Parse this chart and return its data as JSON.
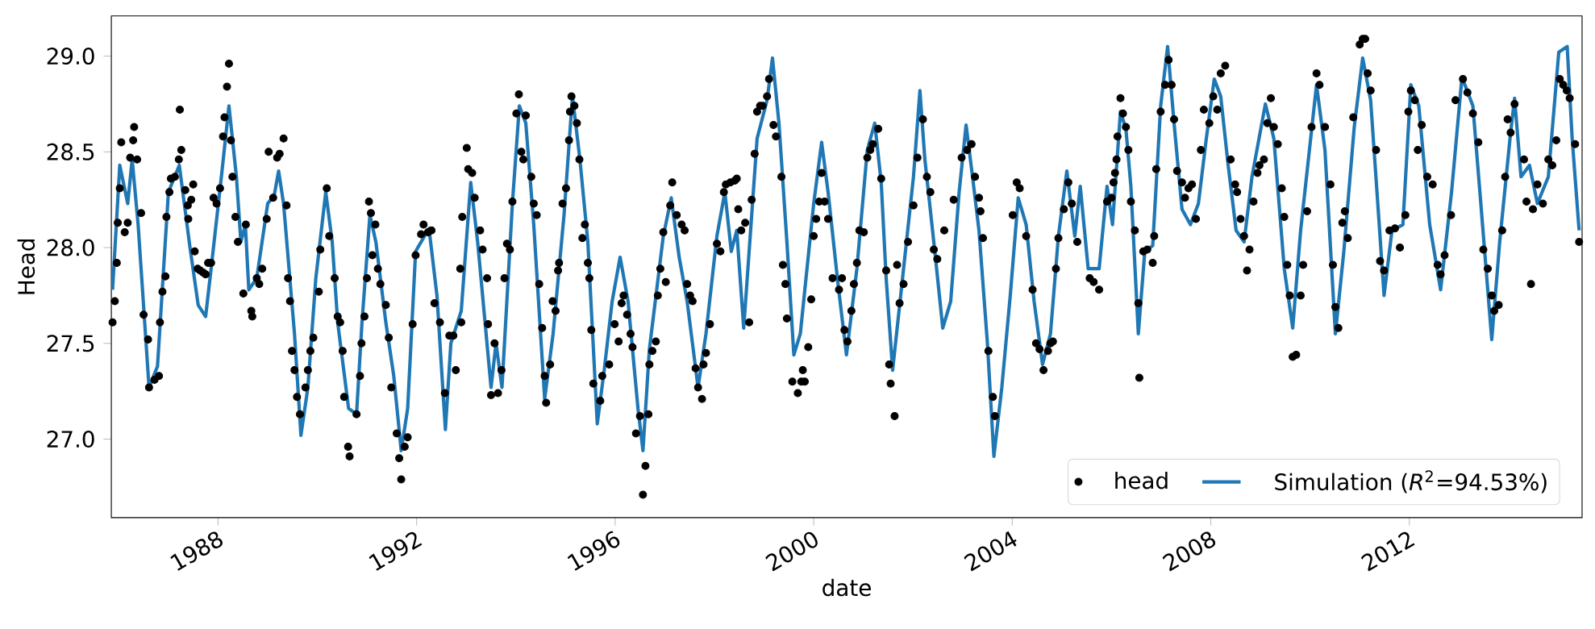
{
  "chart_data": {
    "type": "scatter",
    "xlabel": "date",
    "ylabel": "Head",
    "xlim": [
      1985.85,
      2015.48
    ],
    "ylim": [
      26.59,
      29.21
    ],
    "xticks": [
      1988,
      1992,
      1996,
      2000,
      2004,
      2008,
      2012
    ],
    "yticks": [
      {
        "value": 27,
        "label": "27.0"
      },
      {
        "value": 27.5,
        "label": "27.5"
      },
      {
        "value": 28,
        "label": "28.0"
      },
      {
        "value": 28.5,
        "label": "28.5"
      },
      {
        "value": 29,
        "label": "29.0"
      }
    ],
    "legend": "bottom right",
    "series": [
      {
        "name": "head",
        "marker": "circle",
        "color": "#000000",
        "x": [
          1985.875,
          1985.92,
          1985.96,
          1985.98,
          1986.02,
          1986.05,
          1986.12,
          1986.18,
          1986.23,
          1986.29,
          1986.31,
          1986.37,
          1986.45,
          1986.5,
          1986.59,
          1986.61,
          1986.72,
          1986.81,
          1986.83,
          1986.88,
          1986.94,
          1986.96,
          1987.02,
          1987.05,
          1987.13,
          1987.21,
          1987.23,
          1987.26,
          1987.34,
          1987.39,
          1987.4,
          1987.46,
          1987.5,
          1987.53,
          1987.59,
          1987.64,
          1987.7,
          1987.75,
          1987.8,
          1987.86,
          1987.91,
          1987.97,
          1988.04,
          1988.1,
          1988.13,
          1988.18,
          1988.22,
          1988.26,
          1988.29,
          1988.35,
          1988.4,
          1988.51,
          1988.56,
          1988.67,
          1988.69,
          1988.78,
          1988.83,
          1988.89,
          1988.98,
          1989.02,
          1989.11,
          1989.19,
          1989.24,
          1989.32,
          1989.38,
          1989.41,
          1989.45,
          1989.49,
          1989.54,
          1989.59,
          1989.65,
          1989.76,
          1989.81,
          1989.86,
          1989.92,
          1990.03,
          1990.06,
          1990.19,
          1990.24,
          1990.35,
          1990.41,
          1990.46,
          1990.51,
          1990.54,
          1990.62,
          1990.65,
          1990.79,
          1990.86,
          1990.89,
          1990.95,
          1991.0,
          1991.04,
          1991.08,
          1991.11,
          1991.17,
          1991.22,
          1991.27,
          1991.38,
          1991.44,
          1991.49,
          1991.6,
          1991.65,
          1991.69,
          1991.76,
          1991.82,
          1991.92,
          1991.98,
          1992.09,
          1992.14,
          1992.23,
          1992.3,
          1992.36,
          1992.47,
          1992.57,
          1992.66,
          1992.74,
          1992.79,
          1992.88,
          1992.9,
          1992.92,
          1993.01,
          1993.04,
          1993.12,
          1993.17,
          1993.28,
          1993.33,
          1993.42,
          1993.44,
          1993.5,
          1993.57,
          1993.64,
          1993.71,
          1993.77,
          1993.82,
          1993.88,
          1993.93,
          1994.01,
          1994.06,
          1994.11,
          1994.15,
          1994.2,
          1994.31,
          1994.36,
          1994.42,
          1994.47,
          1994.53,
          1994.58,
          1994.61,
          1994.69,
          1994.74,
          1994.8,
          1994.85,
          1994.87,
          1994.94,
          1995.01,
          1995.07,
          1995.09,
          1995.12,
          1995.18,
          1995.23,
          1995.28,
          1995.34,
          1995.39,
          1995.45,
          1995.48,
          1995.52,
          1995.56,
          1995.7,
          1995.74,
          1995.88,
          1995.99,
          1996.07,
          1996.13,
          1996.17,
          1996.24,
          1996.31,
          1996.35,
          1996.42,
          1996.5,
          1996.56,
          1996.61,
          1996.67,
          1996.69,
          1996.75,
          1996.82,
          1996.86,
          1996.91,
          1996.97,
          1997.02,
          1997.11,
          1997.15,
          1997.24,
          1997.34,
          1997.4,
          1997.45,
          1997.51,
          1997.56,
          1997.62,
          1997.67,
          1997.75,
          1997.78,
          1997.83,
          1997.91,
          1998.05,
          1998.12,
          1998.19,
          1998.23,
          1998.32,
          1998.41,
          1998.45,
          1998.48,
          1998.54,
          1998.62,
          1998.7,
          1998.75,
          1998.81,
          1998.86,
          1998.92,
          1998.97,
          1999.06,
          1999.1,
          1999.19,
          1999.24,
          1999.35,
          1999.38,
          1999.43,
          1999.46,
          1999.57,
          1999.68,
          1999.75,
          1999.78,
          1999.82,
          1999.89,
          1999.95,
          2000.0,
          2000.05,
          2000.11,
          2000.16,
          2000.22,
          2000.29,
          2000.38,
          2000.51,
          2000.57,
          2000.62,
          2000.68,
          2000.76,
          2000.81,
          2000.87,
          2000.92,
          2001.01,
          2001.08,
          2001.14,
          2001.19,
          2001.3,
          2001.36,
          2001.46,
          2001.52,
          2001.55,
          2001.63,
          2001.68,
          2001.73,
          2001.81,
          2001.9,
          2002.01,
          2002.09,
          2002.2,
          2002.28,
          2002.35,
          2002.42,
          2002.49,
          2002.63,
          2002.82,
          2002.98,
          2003.09,
          2003.18,
          2003.25,
          2003.33,
          2003.36,
          2003.41,
          2003.52,
          2003.61,
          2003.65,
          2004.01,
          2004.09,
          2004.15,
          2004.28,
          2004.41,
          2004.48,
          2004.55,
          2004.63,
          2004.72,
          2004.77,
          2004.82,
          2004.88,
          2004.93,
          2005.04,
          2005.13,
          2005.2,
          2005.31,
          2005.56,
          2005.64,
          2005.75,
          2005.91,
          2006.0,
          2006.04,
          2006.07,
          2006.1,
          2006.12,
          2006.18,
          2006.23,
          2006.29,
          2006.34,
          2006.39,
          2006.47,
          2006.54,
          2006.56,
          2006.64,
          2006.72,
          2006.83,
          2006.86,
          2006.9,
          2006.99,
          2007.08,
          2007.15,
          2007.21,
          2007.26,
          2007.32,
          2007.42,
          2007.48,
          2007.55,
          2007.62,
          2007.7,
          2007.8,
          2007.86,
          2007.97,
          2008.05,
          2008.13,
          2008.2,
          2008.29,
          2008.4,
          2008.49,
          2008.53,
          2008.6,
          2008.67,
          2008.73,
          2008.78,
          2008.86,
          2008.94,
          2008.98,
          2009.07,
          2009.14,
          2009.21,
          2009.27,
          2009.35,
          2009.43,
          2009.48,
          2009.54,
          2009.59,
          2009.65,
          2009.72,
          2009.81,
          2009.86,
          2009.94,
          2010.03,
          2010.13,
          2010.19,
          2010.3,
          2010.41,
          2010.46,
          2010.51,
          2010.57,
          2010.65,
          2010.7,
          2010.76,
          2010.87,
          2011.0,
          2011.06,
          2011.11,
          2011.16,
          2011.22,
          2011.33,
          2011.41,
          2011.49,
          2011.6,
          2011.71,
          2011.81,
          2011.92,
          2011.98,
          2012.03,
          2012.11,
          2012.17,
          2012.25,
          2012.36,
          2012.47,
          2012.57,
          2012.63,
          2012.71,
          2012.84,
          2012.93,
          2013.08,
          2013.17,
          2013.28,
          2013.39,
          2013.49,
          2013.58,
          2013.66,
          2013.71,
          2013.8,
          2013.87,
          2013.93,
          2013.98,
          2014.04,
          2014.12,
          2014.31,
          2014.36,
          2014.45,
          2014.49,
          2014.58,
          2014.69,
          2014.8,
          2014.88,
          2014.96,
          2015.03,
          2015.1,
          2015.17,
          2015.23,
          2015.34,
          2015.42
        ],
        "values": [
          27.61,
          27.72,
          27.92,
          28.13,
          28.31,
          28.55,
          28.08,
          28.13,
          28.47,
          28.56,
          28.63,
          28.46,
          28.18,
          27.65,
          27.52,
          27.27,
          27.31,
          27.33,
          27.61,
          27.77,
          27.85,
          28.16,
          28.29,
          28.36,
          28.37,
          28.46,
          28.72,
          28.51,
          28.3,
          28.22,
          28.15,
          28.25,
          28.33,
          27.98,
          27.89,
          27.88,
          27.87,
          27.86,
          27.92,
          27.92,
          28.26,
          28.23,
          28.31,
          28.58,
          28.68,
          28.84,
          28.96,
          28.56,
          28.37,
          28.16,
          28.03,
          27.76,
          28.12,
          27.67,
          27.64,
          27.84,
          27.81,
          27.89,
          28.15,
          28.5,
          28.26,
          28.47,
          28.49,
          28.57,
          28.22,
          27.84,
          27.72,
          27.46,
          27.36,
          27.22,
          27.13,
          27.27,
          27.36,
          27.46,
          27.53,
          27.77,
          27.99,
          28.31,
          28.06,
          27.84,
          27.64,
          27.61,
          27.46,
          27.22,
          26.96,
          26.91,
          27.13,
          27.33,
          27.5,
          27.64,
          27.84,
          28.24,
          28.18,
          27.96,
          28.12,
          27.89,
          27.81,
          27.7,
          27.53,
          27.27,
          27.03,
          26.9,
          26.79,
          26.96,
          27.01,
          27.6,
          27.96,
          28.07,
          28.12,
          28.08,
          28.09,
          27.71,
          27.61,
          27.24,
          27.54,
          27.54,
          27.36,
          27.89,
          27.61,
          28.16,
          28.52,
          28.41,
          28.39,
          28.26,
          28.09,
          27.99,
          27.84,
          27.6,
          27.23,
          27.5,
          27.24,
          27.36,
          27.84,
          28.02,
          27.99,
          28.24,
          28.7,
          28.8,
          28.5,
          28.46,
          28.69,
          28.37,
          28.23,
          28.17,
          27.81,
          27.58,
          27.33,
          27.19,
          27.39,
          27.72,
          27.67,
          27.88,
          27.92,
          28.23,
          28.31,
          28.56,
          28.71,
          28.79,
          28.74,
          28.65,
          28.46,
          28.05,
          28.12,
          27.92,
          27.84,
          27.57,
          27.29,
          27.2,
          27.33,
          27.39,
          27.6,
          27.51,
          27.71,
          27.75,
          27.65,
          27.55,
          27.48,
          27.03,
          27.12,
          26.71,
          26.86,
          27.13,
          27.39,
          27.46,
          27.51,
          27.75,
          27.89,
          28.08,
          27.82,
          28.22,
          28.34,
          28.17,
          28.12,
          28.09,
          27.81,
          27.75,
          27.72,
          27.37,
          27.27,
          27.21,
          27.39,
          27.45,
          27.6,
          28.02,
          27.98,
          28.29,
          28.33,
          28.34,
          28.35,
          28.36,
          28.2,
          28.09,
          28.13,
          27.61,
          28.25,
          28.49,
          28.71,
          28.74,
          28.74,
          28.79,
          28.88,
          28.64,
          28.58,
          28.37,
          27.91,
          27.81,
          27.63,
          27.3,
          27.24,
          27.3,
          27.36,
          27.3,
          27.48,
          27.73,
          28.06,
          28.15,
          28.24,
          28.39,
          28.24,
          28.15,
          27.84,
          27.78,
          27.84,
          27.57,
          27.51,
          27.67,
          27.81,
          27.92,
          28.09,
          28.08,
          28.47,
          28.51,
          28.54,
          28.62,
          28.36,
          27.88,
          27.39,
          27.29,
          27.12,
          27.91,
          27.71,
          27.81,
          28.03,
          28.22,
          28.47,
          28.67,
          28.37,
          28.29,
          27.99,
          27.94,
          28.09,
          28.25,
          28.47,
          28.51,
          28.54,
          28.37,
          28.26,
          28.19,
          28.05,
          27.46,
          27.22,
          27.12,
          28.17,
          28.34,
          28.31,
          28.06,
          27.78,
          27.5,
          27.47,
          27.36,
          27.46,
          27.5,
          27.51,
          27.89,
          28.05,
          28.2,
          28.34,
          28.23,
          28.03,
          27.84,
          27.82,
          27.78,
          28.24,
          28.26,
          28.34,
          28.39,
          28.46,
          28.58,
          28.78,
          28.7,
          28.63,
          28.51,
          28.24,
          28.09,
          27.71,
          27.32,
          27.98,
          27.99,
          27.92,
          28.06,
          28.41,
          28.71,
          28.85,
          28.98,
          28.85,
          28.67,
          28.4,
          28.34,
          28.26,
          28.31,
          28.33,
          28.15,
          28.51,
          28.72,
          28.65,
          28.79,
          28.72,
          28.91,
          28.95,
          28.46,
          28.33,
          28.29,
          28.15,
          28.06,
          27.88,
          27.99,
          28.24,
          28.39,
          28.43,
          28.46,
          28.65,
          28.78,
          28.63,
          28.54,
          28.31,
          28.16,
          27.91,
          27.75,
          27.43,
          27.44,
          27.75,
          27.91,
          28.19,
          28.63,
          28.91,
          28.85,
          28.63,
          28.33,
          27.91,
          27.69,
          27.58,
          28.13,
          28.19,
          28.05,
          28.68,
          29.06,
          29.09,
          29.09,
          28.91,
          28.82,
          28.51,
          27.93,
          27.88,
          28.09,
          28.1,
          28.0,
          28.17,
          28.71,
          28.82,
          28.77,
          28.51,
          28.64,
          28.37,
          28.33,
          27.91,
          27.86,
          27.96,
          28.17,
          28.77,
          28.88,
          28.81,
          28.7,
          28.55,
          27.99,
          27.89,
          27.75,
          27.67,
          27.7,
          28.09,
          28.37,
          28.67,
          28.6,
          28.75,
          28.46,
          28.24,
          27.81,
          28.2,
          28.33,
          28.23,
          28.46,
          28.43,
          28.56,
          28.88,
          28.85,
          28.82,
          28.78,
          28.54,
          28.03
        ]
      },
      {
        "name": "Simulation (*R*$^{2}$=94.53%)",
        "type": "line",
        "marker": "none",
        "line_style": "solid",
        "color": "#1f77b4",
        "x": [
          1985.875,
          1986.02,
          1986.18,
          1986.27,
          1986.39,
          1986.61,
          1986.78,
          1987.0,
          1987.22,
          1987.43,
          1987.6,
          1987.75,
          1987.86,
          1988.08,
          1988.22,
          1988.37,
          1988.46,
          1988.55,
          1988.62,
          1988.78,
          1989.0,
          1989.13,
          1989.22,
          1989.32,
          1989.54,
          1989.67,
          1989.81,
          1989.97,
          1990.17,
          1990.3,
          1990.41,
          1990.63,
          1990.79,
          1990.9,
          1991.06,
          1991.18,
          1991.38,
          1991.54,
          1991.69,
          1991.82,
          1991.98,
          1992.25,
          1992.41,
          1992.58,
          1992.69,
          1992.9,
          1993.09,
          1993.23,
          1993.5,
          1993.6,
          1993.72,
          1993.93,
          1994.07,
          1994.2,
          1994.36,
          1994.58,
          1994.75,
          1994.97,
          1995.14,
          1995.29,
          1995.45,
          1995.64,
          1995.78,
          1995.94,
          1996.1,
          1996.26,
          1996.46,
          1996.56,
          1996.69,
          1996.97,
          1997.13,
          1997.29,
          1997.45,
          1997.67,
          1997.83,
          1998.05,
          1998.21,
          1998.34,
          1998.45,
          1998.59,
          1998.86,
          1999.06,
          1999.17,
          1999.3,
          1999.46,
          1999.6,
          1999.73,
          2000.0,
          2000.16,
          2000.29,
          2000.49,
          2000.66,
          2000.87,
          2001.08,
          2001.23,
          2001.36,
          2001.46,
          2001.59,
          2001.79,
          2002.01,
          2002.14,
          2002.24,
          2002.44,
          2002.6,
          2002.76,
          2002.93,
          2003.07,
          2003.2,
          2003.33,
          2003.5,
          2003.63,
          2003.79,
          2003.96,
          2004.12,
          2004.28,
          2004.44,
          2004.61,
          2004.77,
          2004.93,
          2005.1,
          2005.26,
          2005.37,
          2005.53,
          2005.75,
          2005.91,
          2006.02,
          2006.18,
          2006.29,
          2006.39,
          2006.54,
          2006.67,
          2006.83,
          2006.99,
          2007.13,
          2007.26,
          2007.42,
          2007.59,
          2007.75,
          2007.91,
          2008.07,
          2008.2,
          2008.35,
          2008.51,
          2008.67,
          2008.83,
          2009.1,
          2009.27,
          2009.48,
          2009.65,
          2009.81,
          2010.13,
          2010.3,
          2010.51,
          2010.68,
          2010.89,
          2011.06,
          2011.22,
          2011.38,
          2011.49,
          2011.65,
          2011.87,
          2012.03,
          2012.19,
          2012.41,
          2012.63,
          2012.85,
          2013.06,
          2013.28,
          2013.44,
          2013.66,
          2013.82,
          2014.04,
          2014.12,
          2014.25,
          2014.42,
          2014.58,
          2014.8,
          2015.01,
          2015.18,
          2015.28,
          2015.42
        ],
        "values": [
          27.78,
          28.43,
          28.23,
          28.46,
          28.12,
          27.27,
          27.38,
          28.29,
          28.43,
          28.01,
          27.7,
          27.64,
          27.89,
          28.4,
          28.74,
          28.37,
          28.03,
          28.12,
          27.78,
          27.84,
          28.23,
          28.27,
          28.4,
          28.23,
          27.55,
          27.02,
          27.27,
          27.84,
          28.29,
          28.03,
          27.61,
          27.16,
          27.13,
          27.61,
          28.17,
          28.03,
          27.61,
          27.33,
          26.94,
          27.16,
          27.98,
          28.1,
          27.75,
          27.05,
          27.5,
          27.67,
          28.34,
          28.03,
          27.27,
          27.5,
          27.27,
          28.23,
          28.74,
          28.65,
          28.12,
          27.21,
          27.55,
          28.17,
          28.79,
          28.46,
          28.03,
          27.08,
          27.36,
          27.72,
          27.95,
          27.72,
          27.16,
          26.94,
          27.47,
          28.06,
          28.26,
          27.95,
          27.72,
          27.27,
          27.55,
          28.06,
          28.29,
          27.98,
          28.09,
          27.58,
          28.57,
          28.77,
          28.99,
          28.65,
          28.03,
          27.44,
          27.55,
          28.23,
          28.55,
          28.29,
          27.81,
          27.44,
          27.89,
          28.51,
          28.65,
          28.34,
          27.84,
          27.36,
          27.84,
          28.37,
          28.82,
          28.46,
          27.98,
          27.58,
          27.72,
          28.29,
          28.64,
          28.37,
          28.09,
          27.5,
          26.91,
          27.27,
          27.75,
          28.26,
          28.12,
          27.72,
          27.39,
          27.55,
          28.06,
          28.4,
          28.06,
          28.32,
          27.89,
          27.89,
          28.32,
          28.12,
          28.71,
          28.62,
          28.32,
          27.55,
          27.98,
          28.01,
          28.74,
          29.05,
          28.65,
          28.2,
          28.12,
          28.23,
          28.57,
          28.88,
          28.79,
          28.43,
          28.09,
          28.03,
          28.37,
          28.75,
          28.57,
          27.89,
          27.58,
          28.09,
          28.85,
          28.51,
          27.55,
          27.98,
          28.63,
          28.99,
          28.77,
          28.17,
          27.75,
          28.09,
          28.12,
          28.85,
          28.74,
          28.12,
          27.78,
          28.29,
          28.89,
          28.74,
          28.23,
          27.52,
          28.03,
          28.6,
          28.78,
          28.37,
          28.43,
          28.23,
          28.37,
          29.02,
          29.05,
          28.57,
          28.09
        ]
      }
    ]
  }
}
